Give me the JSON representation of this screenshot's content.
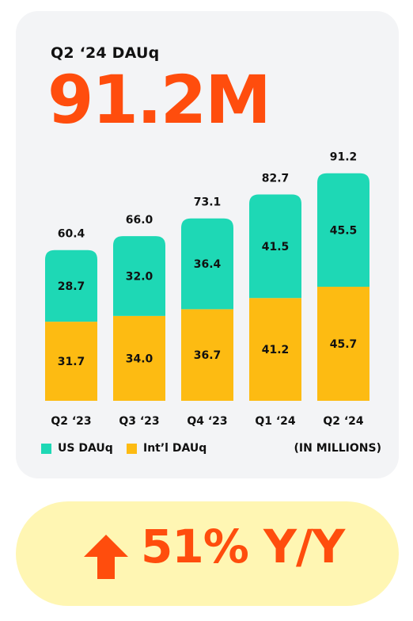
{
  "header": {
    "subtitle": "Q2 ‘24 DAUq",
    "headline": "91.2M"
  },
  "legend": {
    "us_label": "US DAUq",
    "intl_label": "Int’l DAUq",
    "units": "(IN MILLIONS)"
  },
  "yoy": {
    "text": "51% Y/Y",
    "icon": "arrow-up-icon"
  },
  "colors": {
    "us": "#1ed8b5",
    "intl": "#fdbb12",
    "accent": "#ff4d0d",
    "card": "#f3f4f6",
    "yoy_bg": "#fff6b3"
  },
  "chart_data": {
    "type": "bar",
    "stacked": true,
    "categories": [
      "Q2 ‘23",
      "Q3 ‘23",
      "Q4 ‘23",
      "Q1 ‘24",
      "Q2 ‘24"
    ],
    "series": [
      {
        "name": "Int’l DAUq",
        "values": [
          31.7,
          34.0,
          36.7,
          41.2,
          45.7
        ],
        "labels": [
          "31.7",
          "34.0",
          "36.7",
          "41.2",
          "45.7"
        ]
      },
      {
        "name": "US DAUq",
        "values": [
          28.7,
          32.0,
          36.4,
          41.5,
          45.5
        ],
        "labels": [
          "28.7",
          "32.0",
          "36.4",
          "41.5",
          "45.5"
        ]
      }
    ],
    "totals": [
      60.4,
      66.0,
      73.1,
      82.7,
      91.2
    ],
    "total_labels": [
      "60.4",
      "66.0",
      "73.1",
      "82.7",
      "91.2"
    ],
    "legend_position": "bottom-left",
    "grid": false,
    "axes_visible": false
  }
}
